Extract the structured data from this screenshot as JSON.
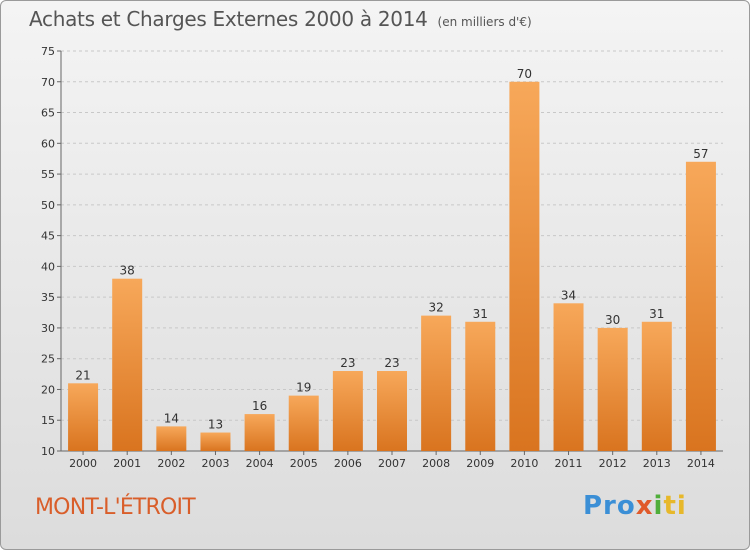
{
  "header": {
    "title": "Achats et Charges Externes 2000 à 2014",
    "unit": "(en milliers d'€)"
  },
  "footer": {
    "town": "MONT-L'ÉTROIT",
    "logo": [
      "Pro",
      "x",
      "i",
      "ti"
    ]
  },
  "colors": {
    "bar_light": "#f7a85a",
    "bar_dark": "#d9741f",
    "grid": "#c8c8c8",
    "town": "#d95e2a"
  },
  "chart_data": {
    "type": "bar",
    "title": "Achats et Charges Externes 2000 à 2014",
    "subtitle": "(en milliers d'€)",
    "xlabel": "",
    "ylabel": "",
    "categories": [
      "2000",
      "2001",
      "2002",
      "2003",
      "2004",
      "2005",
      "2006",
      "2007",
      "2008",
      "2009",
      "2010",
      "2011",
      "2012",
      "2013",
      "2014"
    ],
    "values": [
      21,
      38,
      14,
      13,
      16,
      19,
      23,
      23,
      32,
      31,
      70,
      34,
      30,
      31,
      57
    ],
    "ylim": [
      10,
      75
    ],
    "yticks": [
      10,
      15,
      20,
      25,
      30,
      35,
      40,
      45,
      50,
      55,
      60,
      65,
      70,
      75
    ],
    "grid": true
  }
}
